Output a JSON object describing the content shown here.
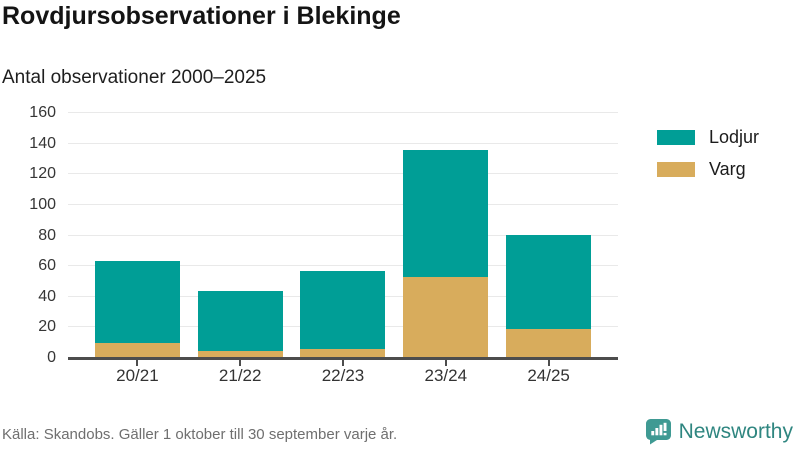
{
  "title": "Rovdjursobservationer i Blekinge",
  "subtitle": "Antal observationer 2000–2025",
  "footer": {
    "source": "Källa: Skandobs. Gäller 1 oktober till 30 september varje år."
  },
  "branding": {
    "name": "Newsworthy",
    "logo_icon": "speech-bubble-bar-chart-exclamation"
  },
  "colors": {
    "lodjur": "#009E96",
    "varg": "#D8AC5C",
    "axis": "#4D4D4D",
    "grid": "#E9E9E9",
    "brand_mark": "#3F9A93",
    "brand_text": "#2F8680"
  },
  "legend": {
    "items": [
      {
        "label": "Lodjur",
        "color_key": "lodjur"
      },
      {
        "label": "Varg",
        "color_key": "varg"
      }
    ]
  },
  "chart_data": {
    "type": "bar",
    "stacked": true,
    "title": "Rovdjursobservationer i Blekinge",
    "subtitle": "Antal observationer 2000–2025",
    "categories": [
      "20/21",
      "21/22",
      "22/23",
      "23/24",
      "24/25"
    ],
    "series": [
      {
        "name": "Lodjur",
        "color_key": "lodjur",
        "values": [
          54,
          39,
          51,
          83,
          62
        ]
      },
      {
        "name": "Varg",
        "color_key": "varg",
        "values": [
          9,
          4,
          5,
          52,
          18
        ]
      }
    ],
    "stack_order_bottom_to_top": [
      "Varg",
      "Lodjur"
    ],
    "totals": [
      63,
      43,
      56,
      135,
      80
    ],
    "xlabel": "",
    "ylabel": "",
    "ylim": [
      0,
      160
    ],
    "yticks": [
      0,
      20,
      40,
      60,
      80,
      100,
      120,
      140,
      160
    ],
    "grid": "horizontal",
    "legend_position": "right"
  }
}
